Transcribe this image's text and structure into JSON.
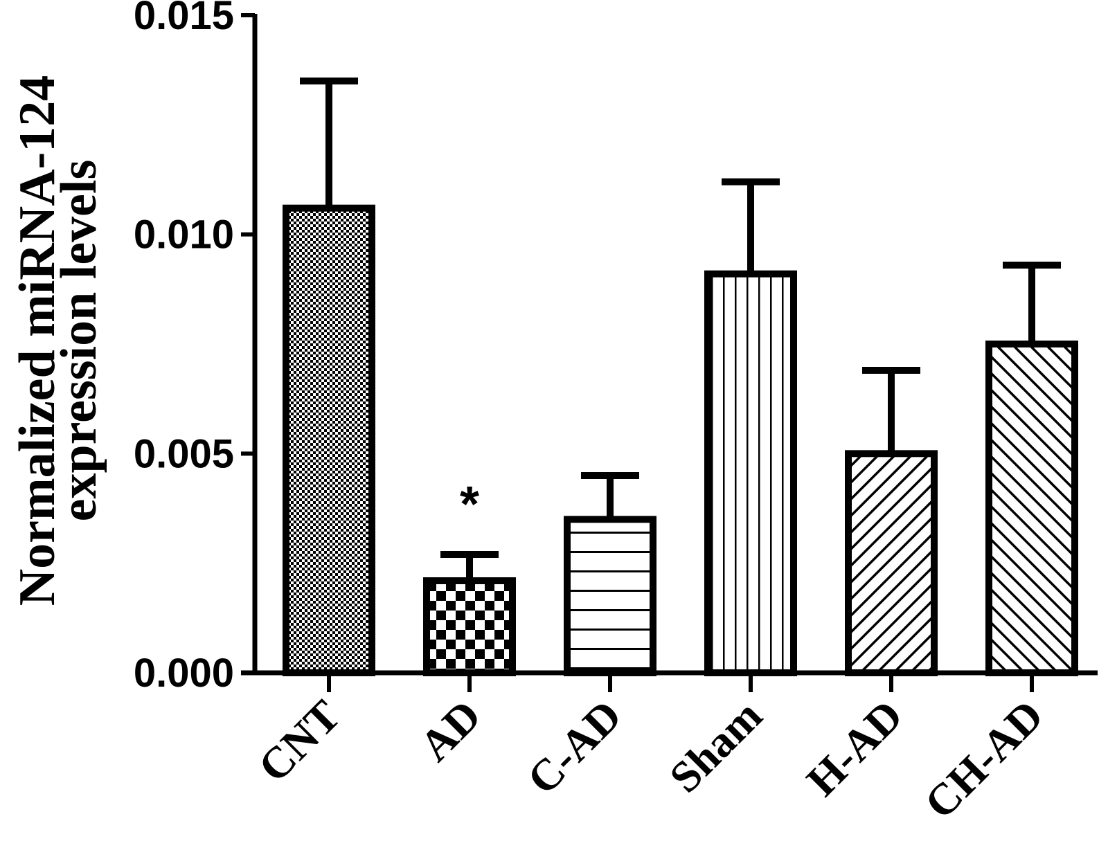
{
  "chart_data": {
    "type": "bar",
    "categories": [
      "CNT",
      "AD",
      "C-AD",
      "Sham",
      "H-AD",
      "CH-AD"
    ],
    "values": [
      0.0106,
      0.0021,
      0.0035,
      0.0091,
      0.005,
      0.0075
    ],
    "errors": [
      0.0029,
      0.0006,
      0.001,
      0.0021,
      0.0019,
      0.0018
    ],
    "patterns": [
      "fine-checker",
      "checker",
      "horizontal-lines",
      "vertical-lines",
      "diagonal-up",
      "diagonal-down"
    ],
    "title": "",
    "xlabel": "",
    "ylabel_lines": [
      "Normalized miRNA-124",
      "expression levels"
    ],
    "ylim": [
      0,
      0.015
    ],
    "yticks": [
      0.0,
      0.005,
      0.01,
      0.015
    ],
    "ytick_labels": [
      "0.000",
      "0.005",
      "0.010",
      "0.015"
    ],
    "annotations": [
      {
        "category": "AD",
        "text": "*"
      }
    ],
    "grid": false,
    "colors": {
      "bar_stroke": "#000000",
      "bar_fill": "#ffffff",
      "axis": "#000000"
    }
  }
}
